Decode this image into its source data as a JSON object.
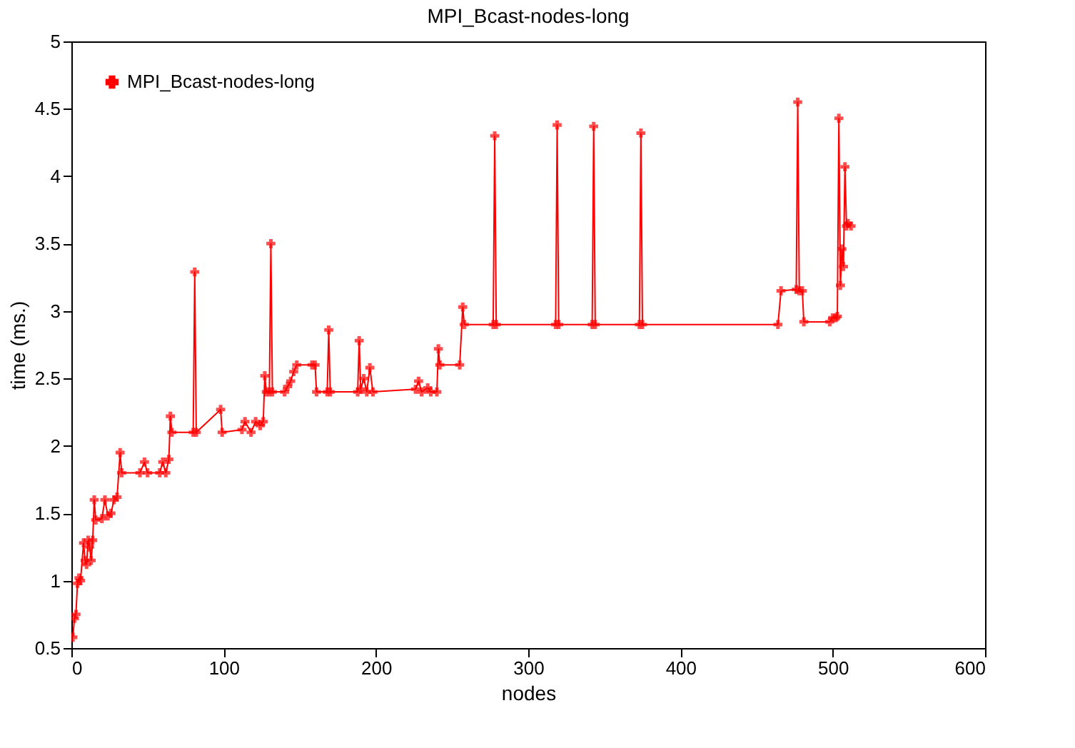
{
  "chart_data": {
    "type": "line",
    "title": "MPI_Bcast-nodes-long",
    "xlabel": "nodes",
    "ylabel": "time (ms.)",
    "xlim": [
      0,
      600
    ],
    "xticks": [
      0,
      100,
      200,
      300,
      400,
      500,
      600
    ],
    "ylim": [
      0.5,
      5
    ],
    "yticks": [
      0.5,
      1,
      1.5,
      2,
      2.5,
      3,
      3.5,
      4,
      4.5,
      5
    ],
    "grid": false,
    "legend": "top left",
    "marker": "cross",
    "line_style": "solid",
    "series": [
      {
        "name": "MPI_Bcast-nodes-long",
        "color": "#ff0000",
        "x": [
          1,
          2,
          3,
          4,
          5,
          6,
          8,
          9,
          10,
          11,
          12,
          13,
          14,
          15,
          16,
          20,
          22,
          24,
          26,
          28,
          30,
          32,
          33,
          45,
          48,
          50,
          58,
          60,
          62,
          64,
          65,
          66,
          80,
          81,
          82,
          98,
          99,
          112,
          114,
          118,
          121,
          124,
          126,
          127,
          128,
          130,
          131,
          132,
          140,
          142,
          144,
          146,
          148,
          158,
          160,
          161,
          168,
          169,
          170,
          188,
          189,
          190,
          192,
          194,
          196,
          198,
          226,
          228,
          230,
          234,
          236,
          240,
          241,
          242,
          255,
          257,
          258,
          277,
          278,
          279,
          318,
          319,
          320,
          342,
          343,
          344,
          373,
          374,
          375,
          464,
          466,
          476,
          477,
          478,
          480,
          481,
          498,
          500,
          502,
          503,
          504,
          505,
          506,
          507,
          508,
          509,
          510,
          512
        ],
        "values": [
          0.58,
          0.72,
          0.75,
          0.98,
          1.02,
          1.0,
          1.28,
          1.15,
          1.12,
          1.3,
          1.25,
          1.15,
          1.3,
          1.6,
          1.45,
          1.46,
          1.6,
          1.48,
          1.5,
          1.6,
          1.62,
          1.95,
          1.8,
          1.8,
          1.88,
          1.8,
          1.8,
          1.88,
          1.8,
          1.9,
          2.22,
          2.1,
          2.1,
          3.29,
          2.1,
          2.27,
          2.1,
          2.12,
          2.18,
          2.1,
          2.18,
          2.15,
          2.18,
          2.52,
          2.4,
          2.4,
          3.5,
          2.4,
          2.4,
          2.44,
          2.48,
          2.55,
          2.6,
          2.6,
          2.6,
          2.4,
          2.4,
          2.86,
          2.4,
          2.4,
          2.78,
          2.42,
          2.5,
          2.4,
          2.58,
          2.4,
          2.42,
          2.48,
          2.4,
          2.43,
          2.4,
          2.4,
          2.72,
          2.6,
          2.6,
          3.03,
          2.9,
          2.9,
          4.3,
          2.9,
          2.9,
          4.38,
          2.9,
          2.9,
          4.37,
          2.9,
          2.9,
          4.32,
          2.9,
          2.9,
          3.15,
          3.16,
          4.55,
          3.15,
          3.15,
          2.92,
          2.92,
          2.95,
          2.95,
          2.96,
          4.43,
          3.19,
          3.46,
          3.33,
          4.07,
          3.63,
          3.65,
          3.63
        ]
      }
    ]
  }
}
